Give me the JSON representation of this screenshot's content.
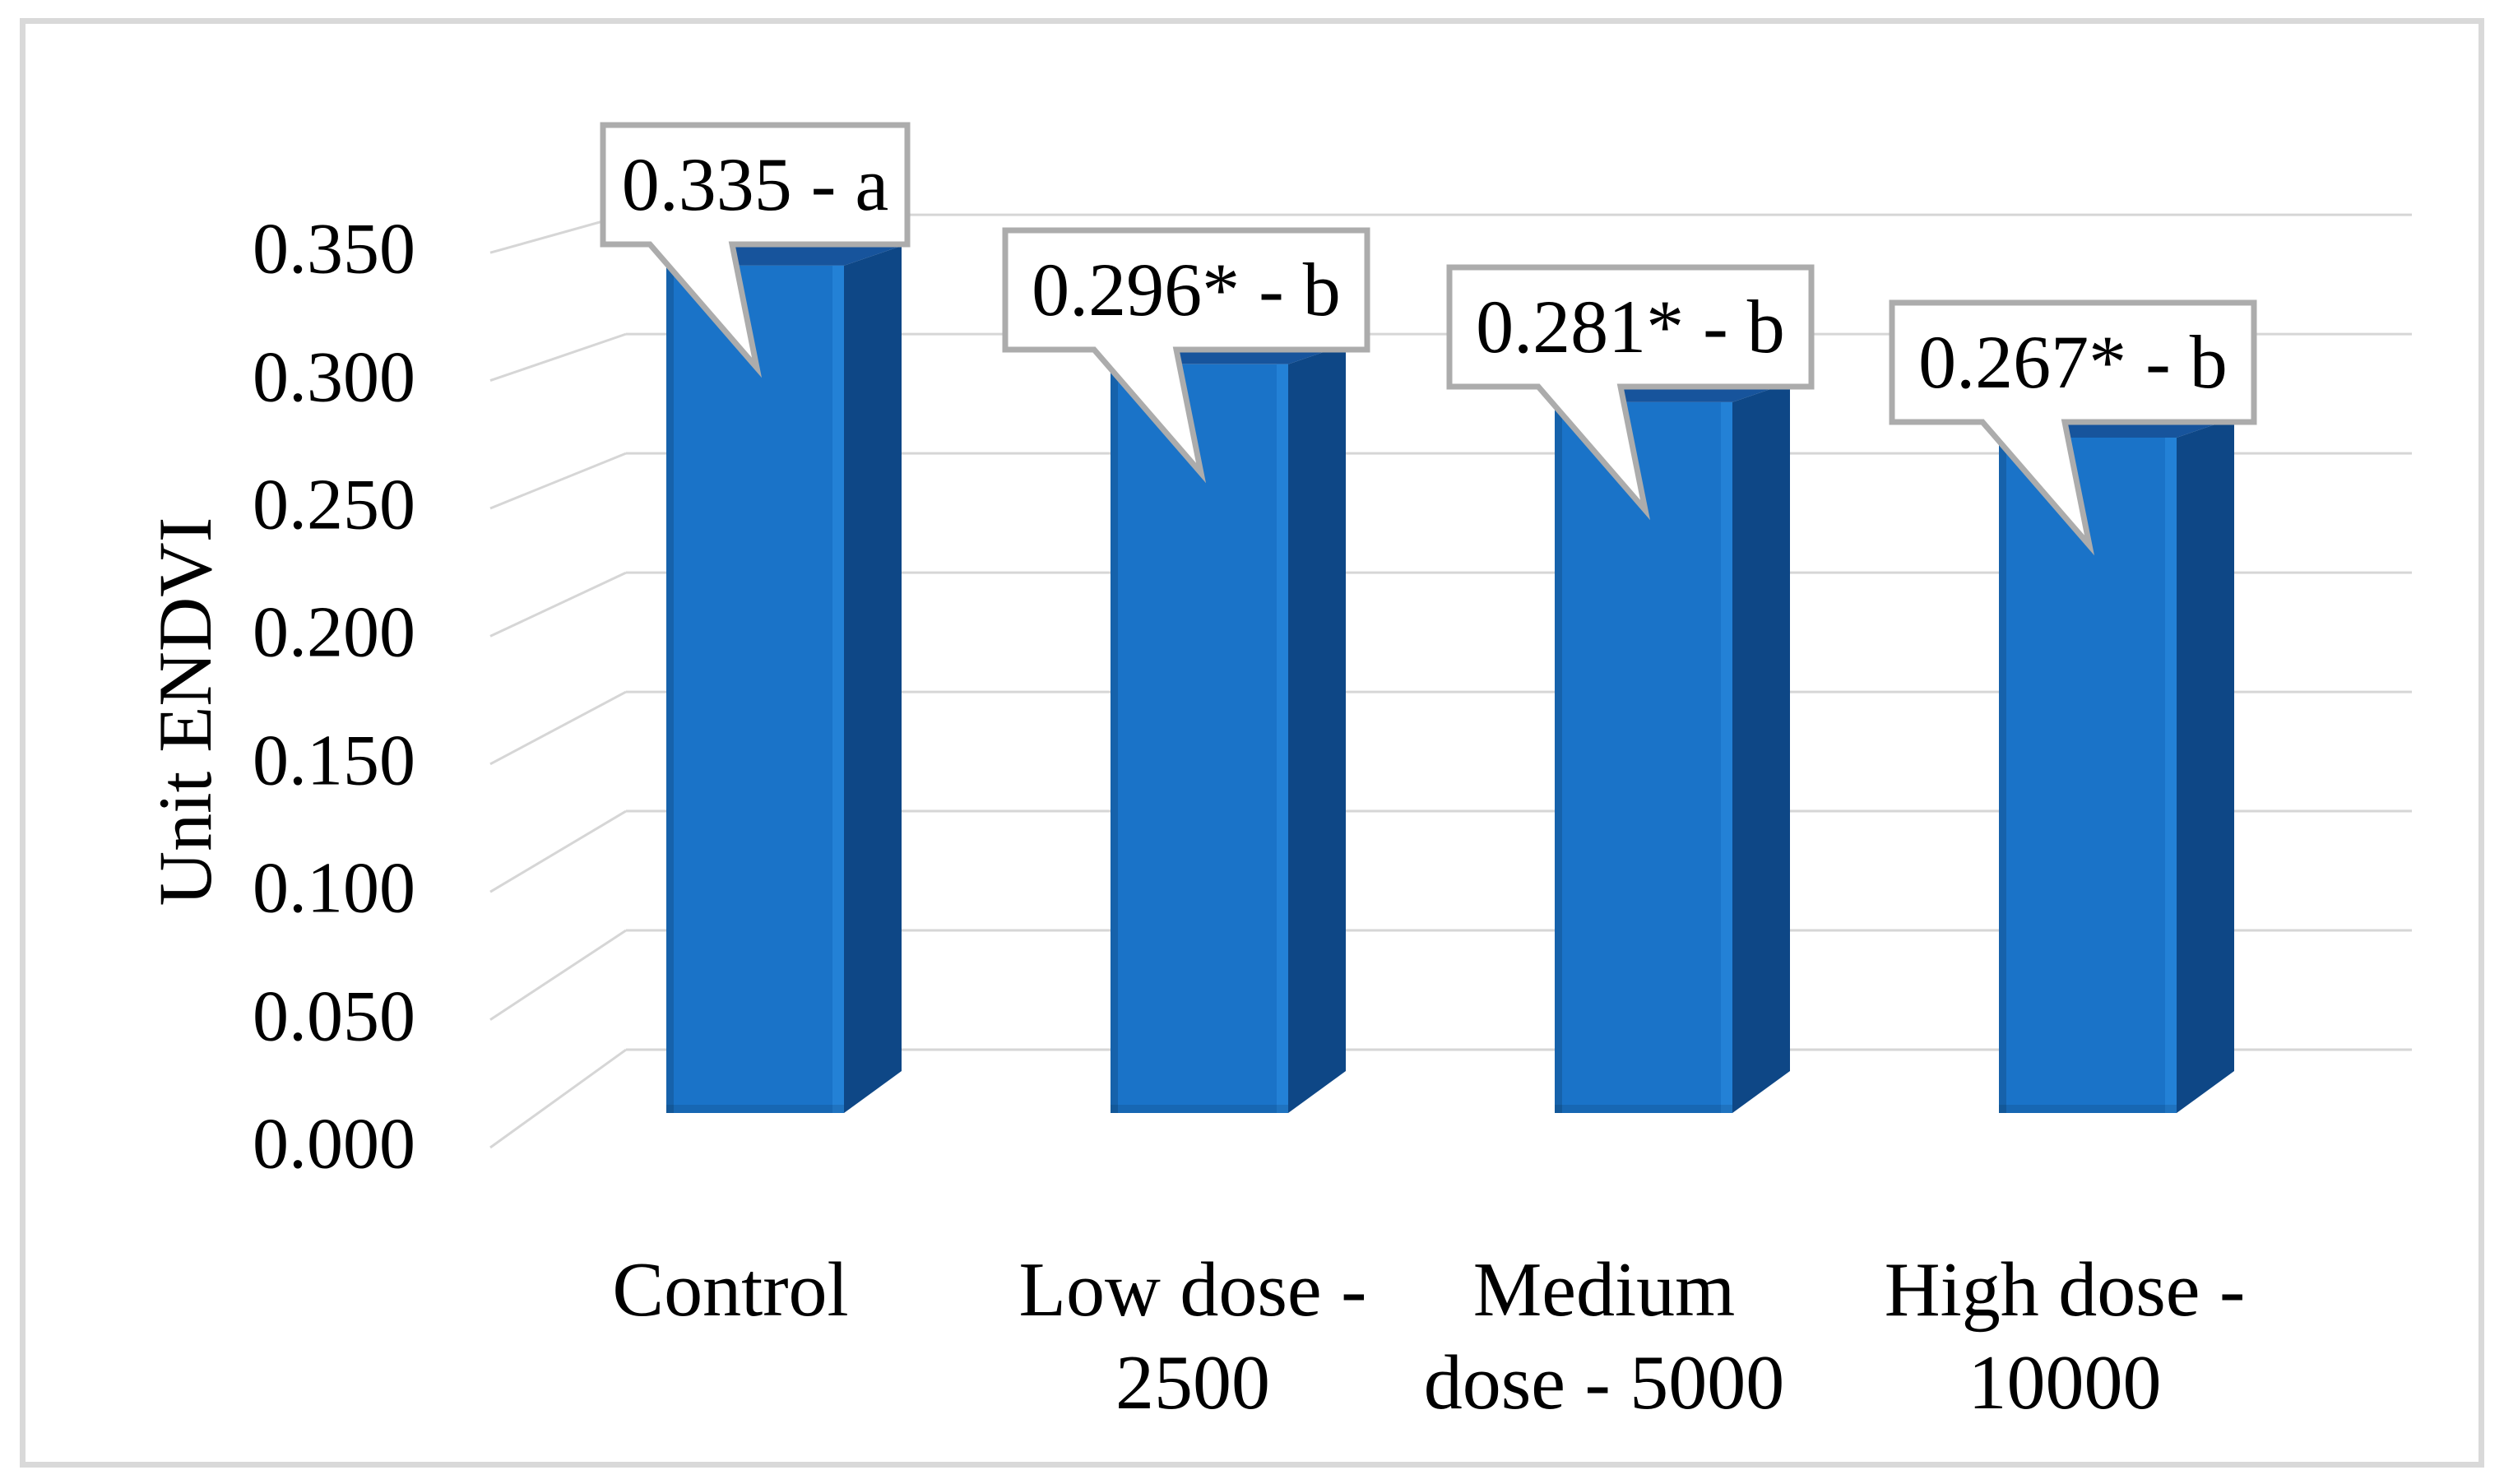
{
  "figure": {
    "type": "3d-column-chart",
    "background": "#ffffff",
    "frame_border_color": "#d9d9d9"
  },
  "chart_data": {
    "type": "bar",
    "projection": "3d",
    "title": "",
    "xlabel": "",
    "ylabel": "Unit ENDVI",
    "categories": [
      "Control",
      "Low dose - 2500",
      "Medium dose - 5000",
      "High dose - 10000"
    ],
    "category_lines": [
      [
        "Control"
      ],
      [
        "Low dose -",
        "2500"
      ],
      [
        "Medium",
        "dose - 5000"
      ],
      [
        "High dose -",
        "10000"
      ]
    ],
    "values": [
      0.335,
      0.296,
      0.281,
      0.267
    ],
    "data_labels": [
      "0.335 - a",
      "0.296* - b",
      "0.281* - b",
      "0.267* - b"
    ],
    "ylim": [
      0,
      0.35
    ],
    "ytick_step": 0.05,
    "ytick_values": [
      0.35,
      0.3,
      0.25,
      0.2,
      0.15,
      0.1,
      0.05,
      0.0
    ],
    "ytick_labels": [
      "0.350",
      "0.300",
      "0.250",
      "0.200",
      "0.150",
      "0.100",
      "0.050",
      "0.000"
    ],
    "grid": true,
    "legend": false,
    "colors": {
      "bar_front": "#1a73c8",
      "bar_front_bevel": "#2381d6",
      "bar_side": "#0e4786",
      "bar_top": "#17549c",
      "gridline": "#d6d6d6",
      "callout_fill": "#ffffff",
      "callout_border": "#acacac",
      "text": "#000000"
    }
  }
}
